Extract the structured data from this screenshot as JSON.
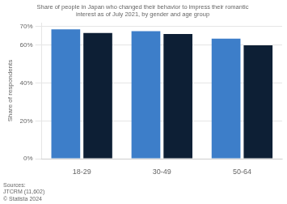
{
  "chart_data": {
    "type": "bar",
    "title": "Share of people in Japan who changed their behavior to impress their romantic\ninterest as of July 2021, by gender and age group",
    "ylabel": "Share of respondents",
    "categories": [
      "18-29",
      "30-49",
      "50-64"
    ],
    "series": [
      {
        "color": "#3d7ec9",
        "values": [
          0.685,
          0.675,
          0.635
        ]
      },
      {
        "color": "#0d1f35",
        "values": [
          0.665,
          0.66,
          0.6
        ]
      }
    ],
    "ylim": [
      0,
      0.72
    ],
    "yticks": [
      {
        "value": 0.0,
        "label": "0%"
      },
      {
        "value": 0.2,
        "label": "20%"
      },
      {
        "value": 0.4,
        "label": "40%"
      },
      {
        "value": 0.6,
        "label": "60%"
      },
      {
        "value": 0.7,
        "label": "70%"
      }
    ],
    "grid": true,
    "source": "Sources:\nJTCRM (11,602)\n© Statista 2024"
  }
}
